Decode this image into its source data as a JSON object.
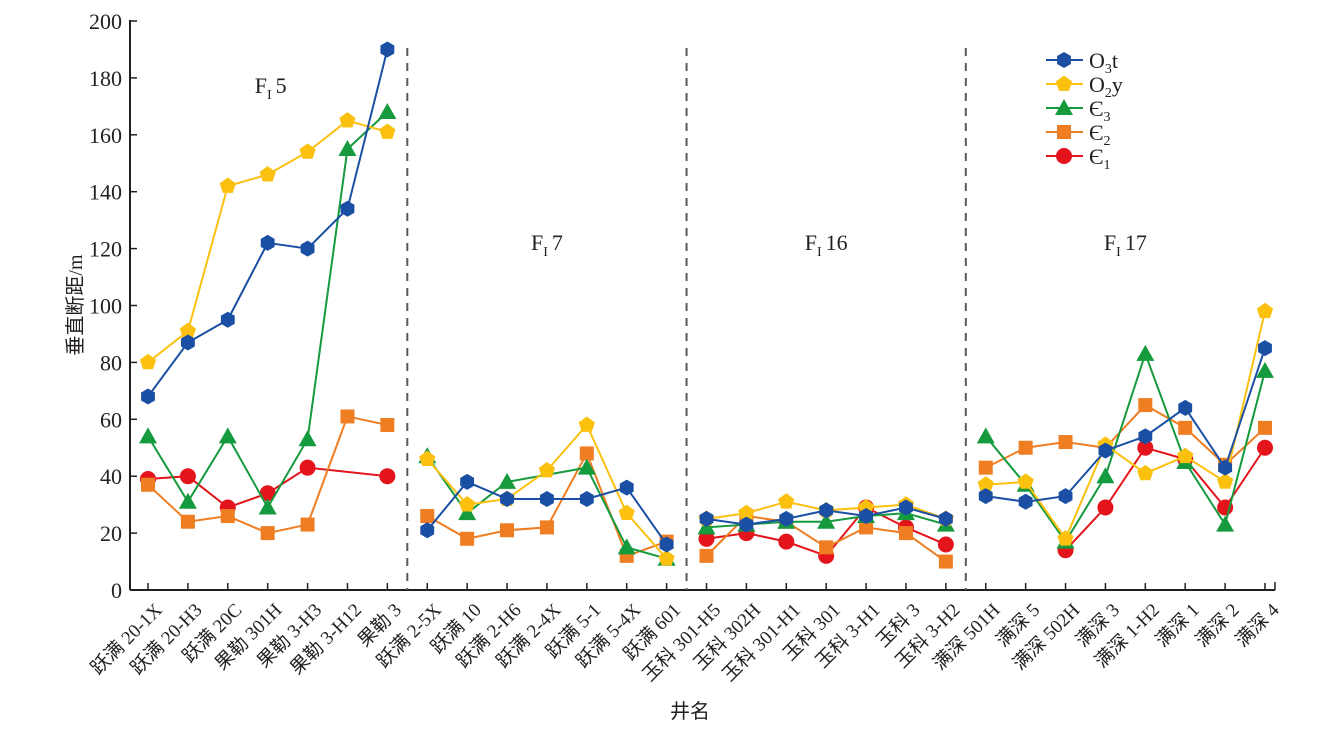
{
  "chart_data": {
    "type": "line",
    "title": "",
    "xlabel": "井名",
    "ylabel": "垂直断距/m",
    "ylim": [
      0,
      200
    ],
    "yticks": [
      0,
      20,
      40,
      60,
      80,
      100,
      120,
      140,
      160,
      180,
      200
    ],
    "grid": false,
    "legend_position": "top-right",
    "categories": [
      "跃满 20-1X",
      "跃满 20-H3",
      "跃满 20C",
      "果勒 301H",
      "果勒 3-H3",
      "果勒 3-H12",
      "果勒 3",
      "跃满 2-5X",
      "跃满 10",
      "跃满 2-H6",
      "跃满 2-4X",
      "跃满 5-1",
      "跃满 5-4X",
      "跃满 601",
      "玉科 301-H5",
      "玉科 302H",
      "玉科 301-H1",
      "玉科 301",
      "玉科 3-H1",
      "玉科 3",
      "玉科 3-H2",
      "满深 501H",
      "满深 5",
      "满深 502H",
      "满深 3",
      "满深 1-H2",
      "满深 1",
      "满深 2",
      "满深 4"
    ],
    "groups": [
      {
        "label_main": "F",
        "label_sub": "I",
        "label_num": "5",
        "start": 0,
        "end": 6
      },
      {
        "label_main": "F",
        "label_sub": "I",
        "label_num": "7",
        "start": 7,
        "end": 13
      },
      {
        "label_main": "F",
        "label_sub": "I",
        "label_num": "16",
        "start": 14,
        "end": 20
      },
      {
        "label_main": "F",
        "label_sub": "I",
        "label_num": "17",
        "start": 21,
        "end": 28
      }
    ],
    "series": [
      {
        "name_main": "O",
        "name_sub": "3",
        "name_tail": "t",
        "marker": "hexagon",
        "color": "#1a4fa3",
        "values": [
          68,
          87,
          95,
          122,
          120,
          134,
          190,
          21,
          38,
          32,
          32,
          32,
          36,
          16,
          25,
          23,
          25,
          28,
          26,
          29,
          25,
          33,
          31,
          33,
          49,
          54,
          64,
          43,
          85
        ]
      },
      {
        "name_main": "O",
        "name_sub": "2",
        "name_tail": "y",
        "marker": "pentagon",
        "color": "#fcc00f",
        "values": [
          80,
          91,
          142,
          146,
          154,
          165,
          161,
          46,
          30,
          32,
          42,
          58,
          27,
          11,
          25,
          27,
          31,
          28,
          29,
          30,
          25,
          37,
          38,
          18,
          51,
          41,
          47,
          38,
          98
        ]
      },
      {
        "name_main": "Є",
        "name_sub": "3",
        "name_tail": "",
        "marker": "triangle",
        "color": "#159a3e",
        "values": [
          54,
          31,
          54,
          29,
          53,
          155,
          168,
          47,
          27,
          38,
          null,
          43,
          15,
          11,
          22,
          23,
          24,
          24,
          26,
          27,
          23,
          54,
          37,
          17,
          40,
          83,
          45,
          23,
          77
        ]
      },
      {
        "name_main": "Є",
        "name_sub": "2",
        "name_tail": "",
        "marker": "square",
        "color": "#ef7d22",
        "values": [
          37,
          24,
          26,
          20,
          23,
          61,
          58,
          26,
          18,
          21,
          22,
          48,
          12,
          17,
          12,
          26,
          24,
          15,
          22,
          20,
          10,
          43,
          50,
          52,
          50,
          65,
          57,
          44,
          57
        ]
      },
      {
        "name_main": "Є",
        "name_sub": "1",
        "name_tail": "",
        "marker": "circle",
        "color": "#e3141b",
        "values": [
          39,
          40,
          29,
          34,
          43,
          null,
          40,
          null,
          null,
          null,
          null,
          null,
          null,
          null,
          18,
          20,
          17,
          12,
          29,
          22,
          16,
          null,
          null,
          14,
          29,
          50,
          46,
          29,
          50
        ]
      }
    ]
  }
}
